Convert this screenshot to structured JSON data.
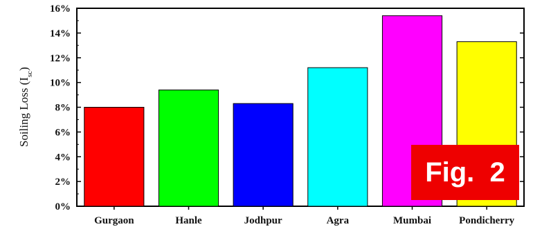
{
  "chart_data": {
    "type": "bar",
    "categories": [
      "Gurgaon",
      "Hanle",
      "Jodhpur",
      "Agra",
      "Mumbai",
      "Pondicherry"
    ],
    "values": [
      8.0,
      9.4,
      8.3,
      11.2,
      15.4,
      13.3
    ],
    "colors": [
      "#ff0000",
      "#00ff00",
      "#0000ff",
      "#00ffff",
      "#ff00ff",
      "#ffff00"
    ],
    "ylabel": "Soiling Loss (Isc)",
    "ylabel_main": "Soiling Loss (I",
    "ylabel_sub": "sc",
    "ylabel_close": ")",
    "ylim": [
      0,
      16
    ],
    "yticks": [
      "0%",
      "2%",
      "4%",
      "6%",
      "8%",
      "10%",
      "12%",
      "14%",
      "16%"
    ],
    "grid": false
  },
  "badge": {
    "text": "Fig.  2",
    "color": "#ee0000"
  }
}
